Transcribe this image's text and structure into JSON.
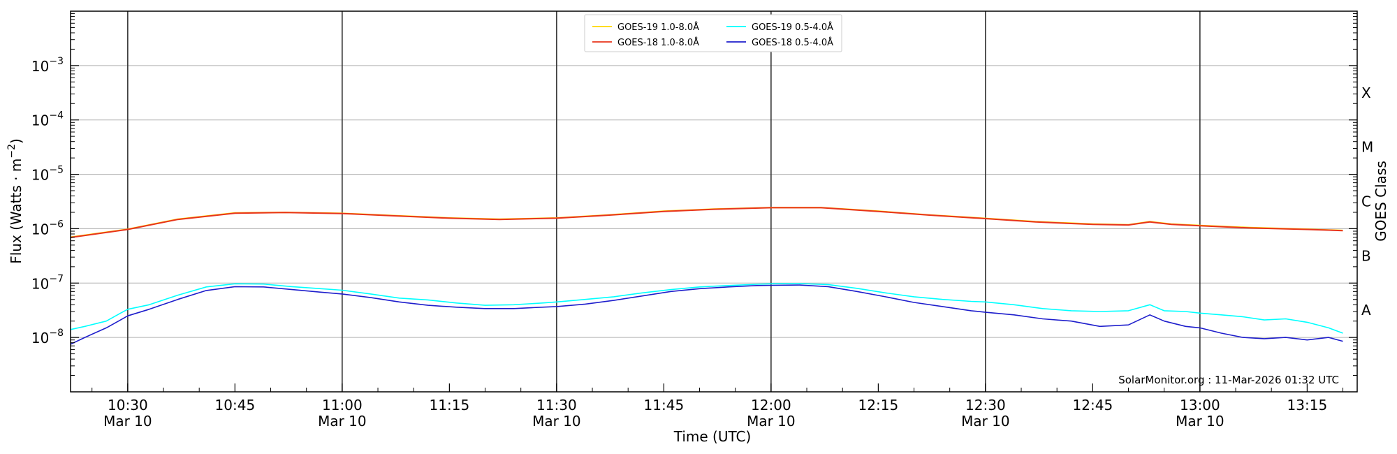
{
  "chart_data": {
    "type": "line",
    "xlabel": "Time (UTC)",
    "ylabel": "Flux (Watts · m",
    "ylabel_sup": "−2",
    "ylabel_close": ")",
    "right_label": "GOES Class",
    "credit": "SolarMonitor.org : 11-Mar-2026 01:32 UTC",
    "xlim": [
      "10:22",
      "13:22"
    ],
    "ylog": true,
    "ylim": [
      1e-09,
      0.01
    ],
    "grid": "horizontal at decades",
    "legend_position": "top-center",
    "y_ticks": [
      {
        "value": 1e-08,
        "base": "10",
        "exp": "−8"
      },
      {
        "value": 1e-07,
        "base": "10",
        "exp": "−7"
      },
      {
        "value": 1e-06,
        "base": "10",
        "exp": "−6"
      },
      {
        "value": 1e-05,
        "base": "10",
        "exp": "−5"
      },
      {
        "value": 0.0001,
        "base": "10",
        "exp": "−4"
      },
      {
        "value": 0.001,
        "base": "10",
        "exp": "−3"
      }
    ],
    "x_ticks": [
      {
        "time": "10:30",
        "label": "10:30",
        "date": "Mar 10"
      },
      {
        "time": "10:45",
        "label": "10:45",
        "date": ""
      },
      {
        "time": "11:00",
        "label": "11:00",
        "date": "Mar 10"
      },
      {
        "time": "11:15",
        "label": "11:15",
        "date": ""
      },
      {
        "time": "11:30",
        "label": "11:30",
        "date": "Mar 10"
      },
      {
        "time": "11:45",
        "label": "11:45",
        "date": ""
      },
      {
        "time": "12:00",
        "label": "12:00",
        "date": "Mar 10"
      },
      {
        "time": "12:15",
        "label": "12:15",
        "date": ""
      },
      {
        "time": "12:30",
        "label": "12:30",
        "date": "Mar 10"
      },
      {
        "time": "12:45",
        "label": "12:45",
        "date": ""
      },
      {
        "time": "13:00",
        "label": "13:00",
        "date": "Mar 10"
      },
      {
        "time": "13:15",
        "label": "13:15",
        "date": ""
      }
    ],
    "vertical_lines": [
      "10:30",
      "11:00",
      "11:30",
      "12:00",
      "12:30",
      "13:00"
    ],
    "goes_classes": [
      {
        "label": "A",
        "value": 3.16e-08
      },
      {
        "label": "B",
        "value": 3.16e-07
      },
      {
        "label": "C",
        "value": 3.16e-06
      },
      {
        "label": "M",
        "value": 3.16e-05
      },
      {
        "label": "X",
        "value": 0.000316
      }
    ],
    "series": [
      {
        "name": "GOES-19 1.0-8.0Å",
        "color": "#FFD700",
        "x": [
          "10:22",
          "10:30",
          "10:37",
          "10:45",
          "10:52",
          "11:00",
          "11:07",
          "11:15",
          "11:22",
          "11:30",
          "11:37",
          "11:45",
          "11:52",
          "12:00",
          "12:07",
          "12:15",
          "12:22",
          "12:30",
          "12:37",
          "12:45",
          "12:50",
          "12:53",
          "12:56",
          "13:00",
          "13:07",
          "13:15",
          "13:20"
        ],
        "y": [
          7e-07,
          9.8e-07,
          1.5e-06,
          1.95e-06,
          2e-06,
          1.92e-06,
          1.75e-06,
          1.58e-06,
          1.5e-06,
          1.58e-06,
          1.78e-06,
          2.1e-06,
          2.3e-06,
          2.45e-06,
          2.45e-06,
          2.1e-06,
          1.8e-06,
          1.55e-06,
          1.35e-06,
          1.22e-06,
          1.18e-06,
          1.35e-06,
          1.22e-06,
          1.15e-06,
          1.05e-06,
          9.8e-07,
          9.3e-07
        ]
      },
      {
        "name": "GOES-18 1.0-8.0Å",
        "color": "#E8341C",
        "x": [
          "10:22",
          "10:30",
          "10:37",
          "10:45",
          "10:52",
          "11:00",
          "11:07",
          "11:15",
          "11:22",
          "11:30",
          "11:37",
          "11:45",
          "11:52",
          "12:00",
          "12:07",
          "12:15",
          "12:22",
          "12:30",
          "12:37",
          "12:45",
          "12:50",
          "12:53",
          "12:56",
          "13:00",
          "13:07",
          "13:15",
          "13:20"
        ],
        "y": [
          6.9e-07,
          9.7e-07,
          1.48e-06,
          1.93e-06,
          1.98e-06,
          1.9e-06,
          1.73e-06,
          1.56e-06,
          1.48e-06,
          1.56e-06,
          1.76e-06,
          2.08e-06,
          2.28e-06,
          2.43e-06,
          2.43e-06,
          2.08e-06,
          1.78e-06,
          1.53e-06,
          1.33e-06,
          1.2e-06,
          1.17e-06,
          1.33e-06,
          1.2e-06,
          1.13e-06,
          1.03e-06,
          9.7e-07,
          9.2e-07
        ]
      },
      {
        "name": "GOES-19 0.5-4.0Å",
        "color": "#00FFFF",
        "x": [
          "10:22",
          "10:24",
          "10:27",
          "10:29",
          "10:30",
          "10:33",
          "10:37",
          "10:41",
          "10:45",
          "10:49",
          "10:53",
          "10:57",
          "11:00",
          "11:04",
          "11:08",
          "11:12",
          "11:16",
          "11:20",
          "11:24",
          "11:28",
          "11:30",
          "11:34",
          "11:38",
          "11:42",
          "11:46",
          "11:50",
          "11:54",
          "11:58",
          "12:00",
          "12:04",
          "12:08",
          "12:12",
          "12:16",
          "12:20",
          "12:24",
          "12:28",
          "12:30",
          "12:34",
          "12:38",
          "12:42",
          "12:46",
          "12:50",
          "12:53",
          "12:55",
          "12:58",
          "13:00",
          "13:03",
          "13:06",
          "13:09",
          "13:12",
          "13:15",
          "13:18",
          "13:20"
        ],
        "y": [
          1.4e-08,
          1.6e-08,
          2e-08,
          2.8e-08,
          3.3e-08,
          4e-08,
          6e-08,
          8.5e-08,
          9.7e-08,
          9.6e-08,
          8.6e-08,
          7.9e-08,
          7.4e-08,
          6.3e-08,
          5.3e-08,
          4.9e-08,
          4.3e-08,
          3.9e-08,
          4e-08,
          4.3e-08,
          4.5e-08,
          5e-08,
          5.6e-08,
          6.6e-08,
          7.6e-08,
          8.5e-08,
          9e-08,
          9.5e-08,
          9.7e-08,
          9.8e-08,
          9.4e-08,
          8e-08,
          6.6e-08,
          5.6e-08,
          5e-08,
          4.6e-08,
          4.5e-08,
          4e-08,
          3.4e-08,
          3.1e-08,
          3e-08,
          3.1e-08,
          4e-08,
          3.1e-08,
          3e-08,
          2.8e-08,
          2.6e-08,
          2.4e-08,
          2.1e-08,
          2.2e-08,
          1.9e-08,
          1.5e-08,
          1.2e-08
        ]
      },
      {
        "name": "GOES-18 0.5-4.0Å",
        "color": "#1E1ECC",
        "x": [
          "10:22",
          "10:24",
          "10:27",
          "10:29",
          "10:30",
          "10:33",
          "10:37",
          "10:41",
          "10:45",
          "10:49",
          "10:53",
          "10:57",
          "11:00",
          "11:04",
          "11:08",
          "11:12",
          "11:16",
          "11:20",
          "11:24",
          "11:28",
          "11:30",
          "11:34",
          "11:38",
          "11:42",
          "11:46",
          "11:50",
          "11:54",
          "11:58",
          "12:00",
          "12:04",
          "12:08",
          "12:12",
          "12:16",
          "12:20",
          "12:24",
          "12:28",
          "12:30",
          "12:34",
          "12:38",
          "12:42",
          "12:46",
          "12:50",
          "12:53",
          "12:55",
          "12:58",
          "13:00",
          "13:03",
          "13:06",
          "13:09",
          "13:12",
          "13:15",
          "13:18",
          "13:20"
        ],
        "y": [
          7.5e-09,
          1e-08,
          1.5e-08,
          2.1e-08,
          2.5e-08,
          3.3e-08,
          5e-08,
          7.3e-08,
          8.6e-08,
          8.5e-08,
          7.6e-08,
          6.8e-08,
          6.3e-08,
          5.4e-08,
          4.5e-08,
          3.9e-08,
          3.6e-08,
          3.4e-08,
          3.4e-08,
          3.6e-08,
          3.7e-08,
          4.1e-08,
          4.8e-08,
          5.8e-08,
          7e-08,
          7.9e-08,
          8.5e-08,
          9e-08,
          9.1e-08,
          9.2e-08,
          8.6e-08,
          7e-08,
          5.6e-08,
          4.4e-08,
          3.7e-08,
          3.1e-08,
          2.9e-08,
          2.6e-08,
          2.2e-08,
          2e-08,
          1.6e-08,
          1.7e-08,
          2.6e-08,
          2e-08,
          1.6e-08,
          1.5e-08,
          1.2e-08,
          1e-08,
          9.5e-09,
          1e-08,
          9e-09,
          1e-08,
          8.5e-09
        ]
      }
    ]
  }
}
